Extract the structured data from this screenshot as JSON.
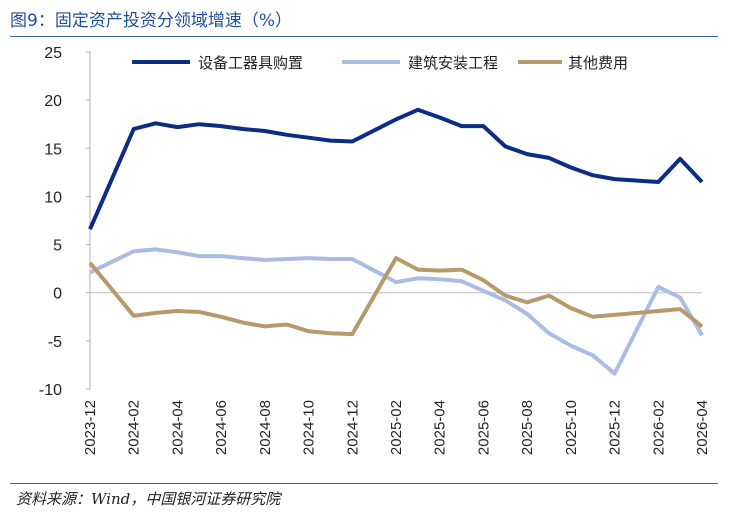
{
  "figure": {
    "title": "图9：固定资产投资分领域增速（%）",
    "source": "资料来源：Wind，中国银河证券研究院"
  },
  "chart_data": {
    "type": "line",
    "title": "图9：固定资产投资分领域增速（%）",
    "xlabel": "",
    "ylabel": "",
    "ylim": [
      -10,
      25
    ],
    "yticks": [
      25,
      20,
      15,
      10,
      5,
      0,
      -5,
      -10
    ],
    "grid": false,
    "legend_position": "top",
    "x": [
      "2023-12",
      "2024-01",
      "2024-02",
      "2024-03",
      "2024-04",
      "2024-05",
      "2024-06",
      "2024-07",
      "2024-08",
      "2024-09",
      "2024-10",
      "2024-11",
      "2024-12",
      "2025-01",
      "2025-02",
      "2025-03",
      "2025-04",
      "2025-05",
      "2025-06",
      "2025-07",
      "2025-08",
      "2025-09",
      "2025-10",
      "2025-11",
      "2025-12",
      "2026-01",
      "2026-02",
      "2026-03",
      "2026-04"
    ],
    "x_tick_labels": [
      "2023-12",
      "",
      "2024-02",
      "",
      "2024-04",
      "",
      "2024-06",
      "",
      "2024-08",
      "",
      "2024-10",
      "",
      "2024-12",
      "",
      "2025-02",
      "",
      "2025-04",
      "",
      "2025-06",
      "",
      "2025-08",
      "",
      "2025-10",
      "",
      "2025-12",
      "",
      "2026-02",
      "",
      "2026-04"
    ],
    "series": [
      {
        "name": "设备工器具购置",
        "color": "#0d2c84",
        "values": [
          6.6,
          null,
          17.0,
          17.6,
          17.2,
          17.5,
          17.3,
          17.0,
          16.8,
          16.4,
          16.1,
          15.8,
          15.7,
          null,
          18.0,
          19.0,
          18.2,
          17.3,
          17.3,
          15.2,
          14.4,
          14.0,
          13.0,
          12.2,
          11.8,
          null,
          11.5,
          13.9,
          11.5
        ]
      },
      {
        "name": "建筑安装工程",
        "color": "#a9bde4",
        "values": [
          2.1,
          null,
          4.3,
          4.5,
          4.2,
          3.8,
          3.8,
          3.6,
          3.4,
          3.5,
          3.6,
          3.5,
          3.5,
          null,
          1.1,
          1.5,
          1.4,
          1.2,
          0.2,
          -0.8,
          -2.2,
          -4.2,
          -5.5,
          -6.5,
          -8.4,
          null,
          0.6,
          -0.5,
          -4.4
        ]
      },
      {
        "name": "其他费用",
        "color": "#b89a6a",
        "values": [
          3.1,
          null,
          -2.4,
          -2.1,
          -1.9,
          -2.0,
          -2.5,
          -3.1,
          -3.5,
          -3.3,
          -4.0,
          -4.2,
          -4.3,
          null,
          3.6,
          2.4,
          2.3,
          2.4,
          1.3,
          -0.3,
          -1.0,
          -0.3,
          -1.6,
          -2.5,
          -2.3,
          null,
          -1.9,
          -1.7,
          -3.5
        ]
      }
    ]
  }
}
